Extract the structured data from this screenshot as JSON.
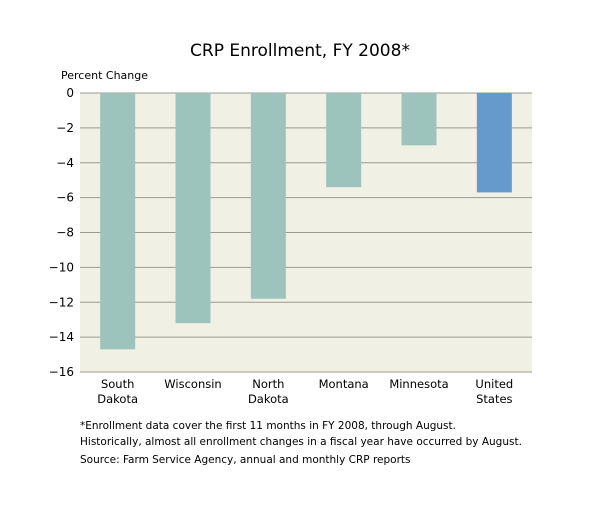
{
  "chart_data": {
    "type": "bar",
    "title": "CRP Enrollment, FY 2008*",
    "ylabel": "Percent Change",
    "xlabel": "",
    "categories": [
      [
        "South",
        "Dakota"
      ],
      [
        "Wisconsin"
      ],
      [
        "North",
        "Dakota"
      ],
      [
        "Montana"
      ],
      [
        "Minnesota"
      ],
      [
        "United",
        "States"
      ]
    ],
    "values": [
      -14.7,
      -13.2,
      -11.8,
      -5.4,
      -3.0,
      -5.7
    ],
    "bar_colors": [
      "#9dc3bd",
      "#9dc3bd",
      "#9dc3bd",
      "#9dc3bd",
      "#9dc3bd",
      "#6699cc"
    ],
    "ylim": [
      -16,
      0
    ],
    "yticks": [
      0,
      -2,
      -4,
      -6,
      -8,
      -10,
      -12,
      -14,
      -16
    ],
    "ytick_labels": [
      "0",
      "−2",
      "−4",
      "−6",
      "−8",
      "−10",
      "−12",
      "−14",
      "−16"
    ],
    "grid": true,
    "plot_background": "#f0f0e4",
    "grid_color": "#9a9a92"
  },
  "footnotes": {
    "line1": "*Enrollment data cover the first 11 months in FY 2008, through August.",
    "line2": "Historically, almost all enrollment changes in a fiscal year have occurred by August.",
    "source": "Source: Farm Service Agency, annual and monthly CRP reports"
  }
}
